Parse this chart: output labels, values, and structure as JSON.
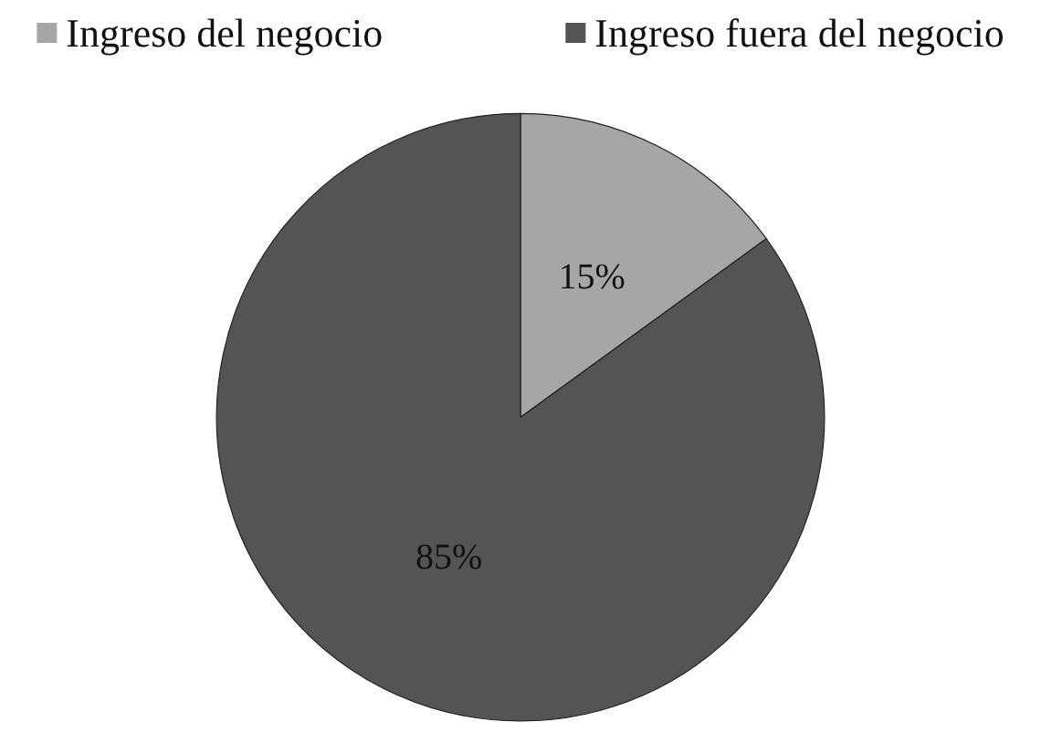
{
  "chart_data": {
    "type": "pie",
    "categories": [
      "Ingreso del negocio",
      "Ingreso fuera del negocio"
    ],
    "values": [
      15,
      85
    ],
    "colors": [
      "#a6a6a6",
      "#545454"
    ],
    "value_labels": [
      "15%",
      "85%"
    ],
    "legend": "top"
  }
}
